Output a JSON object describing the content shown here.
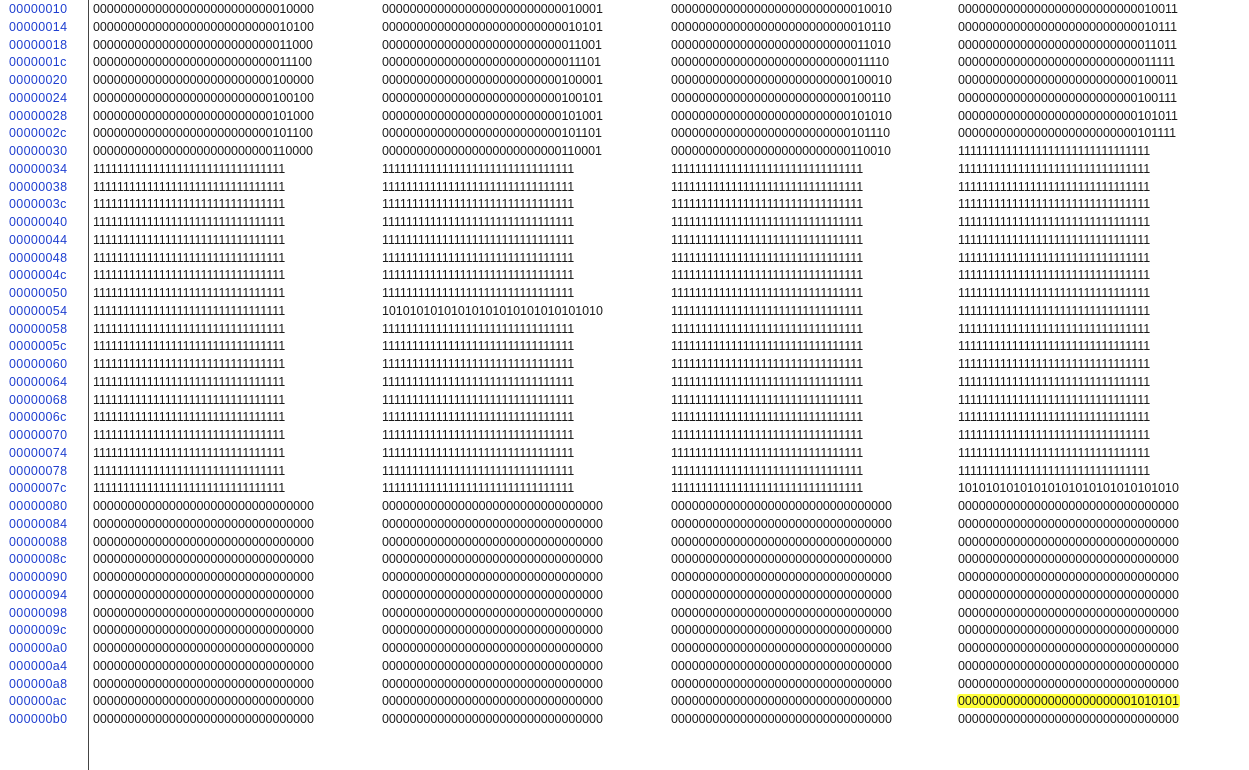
{
  "accent": {
    "address_color": "#1f3fd0",
    "highlight_color": "#ffff3c"
  },
  "rows": [
    {
      "address": "00000010",
      "words": [
        "00000000000000000000000000010000",
        "00000000000000000000000000010001",
        "00000000000000000000000000010010",
        "00000000000000000000000000010011"
      ]
    },
    {
      "address": "00000014",
      "words": [
        "00000000000000000000000000010100",
        "00000000000000000000000000010101",
        "00000000000000000000000000010110",
        "00000000000000000000000000010111"
      ]
    },
    {
      "address": "00000018",
      "words": [
        "00000000000000000000000000011000",
        "00000000000000000000000000011001",
        "00000000000000000000000000011010",
        "00000000000000000000000000011011"
      ]
    },
    {
      "address": "0000001c",
      "words": [
        "00000000000000000000000000011100",
        "00000000000000000000000000011101",
        "00000000000000000000000000011110",
        "00000000000000000000000000011111"
      ]
    },
    {
      "address": "00000020",
      "words": [
        "00000000000000000000000000100000",
        "00000000000000000000000000100001",
        "00000000000000000000000000100010",
        "00000000000000000000000000100011"
      ]
    },
    {
      "address": "00000024",
      "words": [
        "00000000000000000000000000100100",
        "00000000000000000000000000100101",
        "00000000000000000000000000100110",
        "00000000000000000000000000100111"
      ]
    },
    {
      "address": "00000028",
      "words": [
        "00000000000000000000000000101000",
        "00000000000000000000000000101001",
        "00000000000000000000000000101010",
        "00000000000000000000000000101011"
      ]
    },
    {
      "address": "0000002c",
      "words": [
        "00000000000000000000000000101100",
        "00000000000000000000000000101101",
        "00000000000000000000000000101110",
        "00000000000000000000000000101111"
      ]
    },
    {
      "address": "00000030",
      "words": [
        "00000000000000000000000000110000",
        "00000000000000000000000000110001",
        "00000000000000000000000000110010",
        "11111111111111111111111111111111"
      ]
    },
    {
      "address": "00000034",
      "words": [
        "11111111111111111111111111111111",
        "11111111111111111111111111111111",
        "11111111111111111111111111111111",
        "11111111111111111111111111111111"
      ]
    },
    {
      "address": "00000038",
      "words": [
        "11111111111111111111111111111111",
        "11111111111111111111111111111111",
        "11111111111111111111111111111111",
        "11111111111111111111111111111111"
      ]
    },
    {
      "address": "0000003c",
      "words": [
        "11111111111111111111111111111111",
        "11111111111111111111111111111111",
        "11111111111111111111111111111111",
        "11111111111111111111111111111111"
      ]
    },
    {
      "address": "00000040",
      "words": [
        "11111111111111111111111111111111",
        "11111111111111111111111111111111",
        "11111111111111111111111111111111",
        "11111111111111111111111111111111"
      ]
    },
    {
      "address": "00000044",
      "words": [
        "11111111111111111111111111111111",
        "11111111111111111111111111111111",
        "11111111111111111111111111111111",
        "11111111111111111111111111111111"
      ]
    },
    {
      "address": "00000048",
      "words": [
        "11111111111111111111111111111111",
        "11111111111111111111111111111111",
        "11111111111111111111111111111111",
        "11111111111111111111111111111111"
      ]
    },
    {
      "address": "0000004c",
      "words": [
        "11111111111111111111111111111111",
        "11111111111111111111111111111111",
        "11111111111111111111111111111111",
        "11111111111111111111111111111111"
      ]
    },
    {
      "address": "00000050",
      "words": [
        "11111111111111111111111111111111",
        "11111111111111111111111111111111",
        "11111111111111111111111111111111",
        "11111111111111111111111111111111"
      ]
    },
    {
      "address": "00000054",
      "words": [
        "11111111111111111111111111111111",
        "10101010101010101010101010101010",
        "11111111111111111111111111111111",
        "11111111111111111111111111111111"
      ]
    },
    {
      "address": "00000058",
      "words": [
        "11111111111111111111111111111111",
        "11111111111111111111111111111111",
        "11111111111111111111111111111111",
        "11111111111111111111111111111111"
      ]
    },
    {
      "address": "0000005c",
      "words": [
        "11111111111111111111111111111111",
        "11111111111111111111111111111111",
        "11111111111111111111111111111111",
        "11111111111111111111111111111111"
      ]
    },
    {
      "address": "00000060",
      "words": [
        "11111111111111111111111111111111",
        "11111111111111111111111111111111",
        "11111111111111111111111111111111",
        "11111111111111111111111111111111"
      ]
    },
    {
      "address": "00000064",
      "words": [
        "11111111111111111111111111111111",
        "11111111111111111111111111111111",
        "11111111111111111111111111111111",
        "11111111111111111111111111111111"
      ]
    },
    {
      "address": "00000068",
      "words": [
        "11111111111111111111111111111111",
        "11111111111111111111111111111111",
        "11111111111111111111111111111111",
        "11111111111111111111111111111111"
      ]
    },
    {
      "address": "0000006c",
      "words": [
        "11111111111111111111111111111111",
        "11111111111111111111111111111111",
        "11111111111111111111111111111111",
        "11111111111111111111111111111111"
      ]
    },
    {
      "address": "00000070",
      "words": [
        "11111111111111111111111111111111",
        "11111111111111111111111111111111",
        "11111111111111111111111111111111",
        "11111111111111111111111111111111"
      ]
    },
    {
      "address": "00000074",
      "words": [
        "11111111111111111111111111111111",
        "11111111111111111111111111111111",
        "11111111111111111111111111111111",
        "11111111111111111111111111111111"
      ]
    },
    {
      "address": "00000078",
      "words": [
        "11111111111111111111111111111111",
        "11111111111111111111111111111111",
        "11111111111111111111111111111111",
        "11111111111111111111111111111111"
      ]
    },
    {
      "address": "0000007c",
      "words": [
        "11111111111111111111111111111111",
        "11111111111111111111111111111111",
        "11111111111111111111111111111111",
        "10101010101010101010101010101010"
      ]
    },
    {
      "address": "00000080",
      "words": [
        "00000000000000000000000000000000",
        "00000000000000000000000000000000",
        "00000000000000000000000000000000",
        "00000000000000000000000000000000"
      ]
    },
    {
      "address": "00000084",
      "words": [
        "00000000000000000000000000000000",
        "00000000000000000000000000000000",
        "00000000000000000000000000000000",
        "00000000000000000000000000000000"
      ]
    },
    {
      "address": "00000088",
      "words": [
        "00000000000000000000000000000000",
        "00000000000000000000000000000000",
        "00000000000000000000000000000000",
        "00000000000000000000000000000000"
      ]
    },
    {
      "address": "0000008c",
      "words": [
        "00000000000000000000000000000000",
        "00000000000000000000000000000000",
        "00000000000000000000000000000000",
        "00000000000000000000000000000000"
      ]
    },
    {
      "address": "00000090",
      "words": [
        "00000000000000000000000000000000",
        "00000000000000000000000000000000",
        "00000000000000000000000000000000",
        "00000000000000000000000000000000"
      ]
    },
    {
      "address": "00000094",
      "words": [
        "00000000000000000000000000000000",
        "00000000000000000000000000000000",
        "00000000000000000000000000000000",
        "00000000000000000000000000000000"
      ]
    },
    {
      "address": "00000098",
      "words": [
        "00000000000000000000000000000000",
        "00000000000000000000000000000000",
        "00000000000000000000000000000000",
        "00000000000000000000000000000000"
      ]
    },
    {
      "address": "0000009c",
      "words": [
        "00000000000000000000000000000000",
        "00000000000000000000000000000000",
        "00000000000000000000000000000000",
        "00000000000000000000000000000000"
      ]
    },
    {
      "address": "000000a0",
      "words": [
        "00000000000000000000000000000000",
        "00000000000000000000000000000000",
        "00000000000000000000000000000000",
        "00000000000000000000000000000000"
      ]
    },
    {
      "address": "000000a4",
      "words": [
        "00000000000000000000000000000000",
        "00000000000000000000000000000000",
        "00000000000000000000000000000000",
        "00000000000000000000000000000000"
      ]
    },
    {
      "address": "000000a8",
      "words": [
        "00000000000000000000000000000000",
        "00000000000000000000000000000000",
        "00000000000000000000000000000000",
        "00000000000000000000000000000000"
      ]
    },
    {
      "address": "000000ac",
      "words": [
        "00000000000000000000000000000000",
        "00000000000000000000000000000000",
        "00000000000000000000000000000000",
        "00000000000000000000000001010101"
      ],
      "highlight_word": 3
    },
    {
      "address": "000000b0",
      "words": [
        "00000000000000000000000000000000",
        "00000000000000000000000000000000",
        "00000000000000000000000000000000",
        "00000000000000000000000000000000"
      ]
    }
  ]
}
